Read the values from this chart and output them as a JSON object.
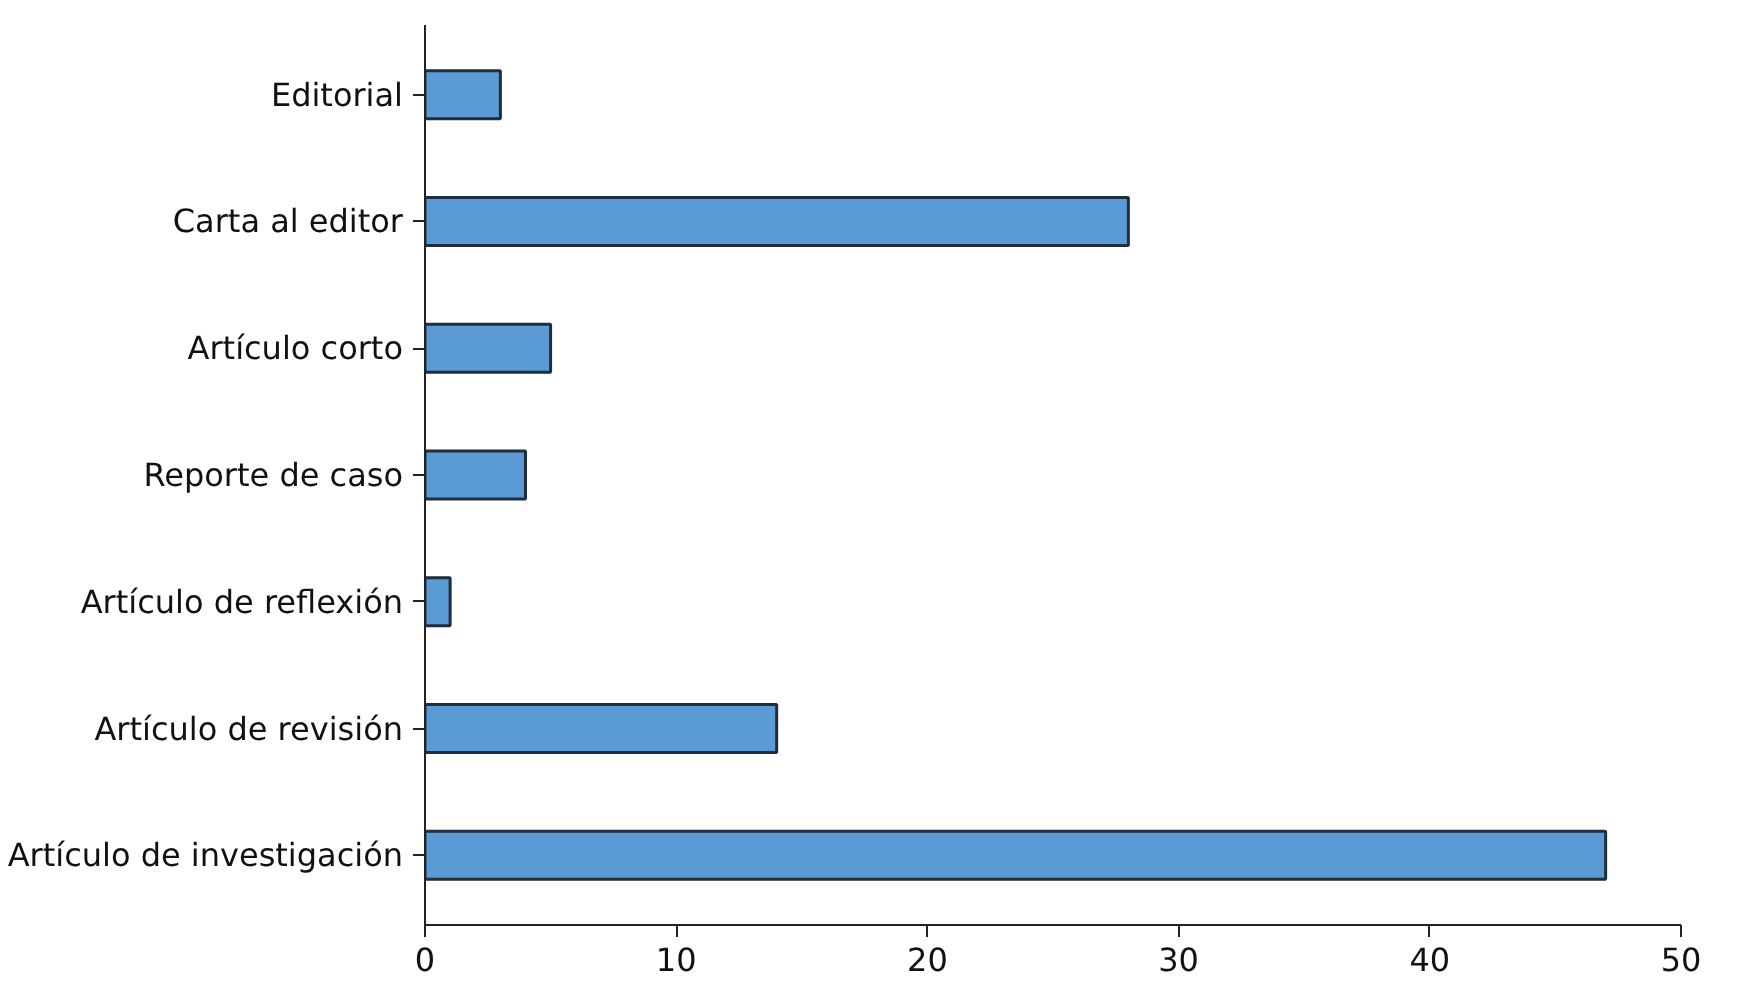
{
  "chart_data": {
    "type": "bar",
    "orientation": "horizontal",
    "categories": [
      "Editorial",
      "Carta al editor",
      "Artículo corto",
      "Reporte de caso",
      "Artículo de reflexión",
      "Artículo de revisión",
      "Artículo de investigación"
    ],
    "values": [
      3,
      28,
      5,
      4,
      1,
      14,
      47
    ],
    "color": "#5b9bd5",
    "xlim": [
      0,
      50
    ],
    "xticks": [
      0,
      10,
      20,
      30,
      40,
      50
    ],
    "grid": false
  }
}
